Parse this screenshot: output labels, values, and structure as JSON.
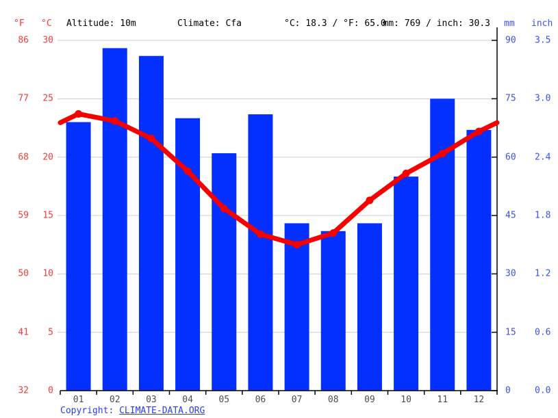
{
  "header": {
    "f_unit": "°F",
    "c_unit": "°C",
    "altitude": "Altitude: 10m",
    "climate": "Climate: Cfa",
    "temperature_summary": "°C: 18.3 / °F: 65.0",
    "precipitation_summary": "mm: 769 / inch: 30.3",
    "mm_unit": "mm",
    "inch_unit": "inch"
  },
  "chart_data": {
    "type": "bar",
    "subtype": "climograph bar+line combo",
    "categories": [
      "01",
      "02",
      "03",
      "04",
      "05",
      "06",
      "07",
      "08",
      "09",
      "10",
      "11",
      "12"
    ],
    "series": [
      {
        "name": "Precipitation (mm)",
        "type": "bar",
        "values": [
          69,
          88,
          86,
          70,
          61,
          71,
          43,
          41,
          43,
          55,
          75,
          67
        ]
      },
      {
        "name": "Temperature (°C)",
        "type": "line",
        "values": [
          23.7,
          23.1,
          21.6,
          18.8,
          15.6,
          13.4,
          12.5,
          13.5,
          16.3,
          18.6,
          20.3,
          22.2
        ],
        "edge_value": 22.95
      }
    ],
    "axes": {
      "left_f_ticks": [
        "86",
        "77",
        "68",
        "59",
        "50",
        "41",
        "32"
      ],
      "left_c_ticks": [
        "30",
        "25",
        "20",
        "15",
        "10",
        "5",
        "0"
      ],
      "right_mm_ticks": [
        "90",
        "75",
        "60",
        "45",
        "30",
        "15",
        "0"
      ],
      "right_inch_ticks": [
        "3.5",
        "3.0",
        "2.4",
        "1.8",
        "1.2",
        "0.6",
        "0.0"
      ],
      "c_range": [
        0,
        30
      ],
      "mm_range": [
        0,
        90
      ],
      "grid": true
    },
    "title": "",
    "legend_position": "none"
  },
  "colors": {
    "bar_blue": "#0330ff",
    "line_red": "#f70000",
    "left_label_red": "#f23b3b",
    "right_label_blue": "#3d50f3",
    "month_label_gray": "#4d4d4d",
    "grid_gray": "#cccccc",
    "axis_black": "#000000",
    "copyright_blue": "#2b3cee"
  },
  "footer": {
    "copyright_label": "Copyright: ",
    "link_text": "CLIMATE-DATA.ORG"
  }
}
